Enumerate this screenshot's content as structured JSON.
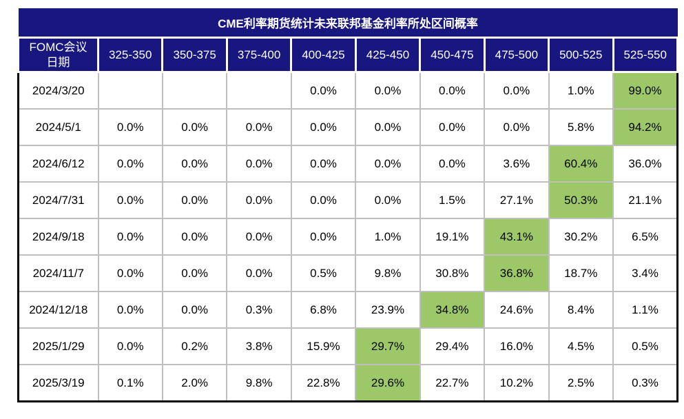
{
  "colors": {
    "header_navy": "#17177F",
    "highlight_green": "#9CC867",
    "grid_gray": "#BFBFBF",
    "outer_border_black": "#000000"
  },
  "chart_data": {
    "type": "table",
    "title": "CME利率期货统计未来联邦基金利率所处区间概率",
    "corner_header_line1": "FOMC会议",
    "corner_header_line2": "日期",
    "columns": [
      "325-350",
      "350-375",
      "375-400",
      "400-425",
      "425-450",
      "450-475",
      "475-500",
      "500-525",
      "525-550"
    ],
    "rows": [
      {
        "date": "2024/3/20",
        "values": [
          "",
          "",
          "",
          "0.0%",
          "0.0%",
          "0.0%",
          "0.0%",
          "1.0%",
          "99.0%"
        ],
        "highlight_col": 8
      },
      {
        "date": "2024/5/1",
        "values": [
          "0.0%",
          "0.0%",
          "0.0%",
          "0.0%",
          "0.0%",
          "0.0%",
          "0.0%",
          "5.8%",
          "94.2%"
        ],
        "highlight_col": 8
      },
      {
        "date": "2024/6/12",
        "values": [
          "0.0%",
          "0.0%",
          "0.0%",
          "0.0%",
          "0.0%",
          "0.0%",
          "3.6%",
          "60.4%",
          "36.0%"
        ],
        "highlight_col": 7
      },
      {
        "date": "2024/7/31",
        "values": [
          "0.0%",
          "0.0%",
          "0.0%",
          "0.0%",
          "0.0%",
          "1.5%",
          "27.1%",
          "50.3%",
          "21.1%"
        ],
        "highlight_col": 7
      },
      {
        "date": "2024/9/18",
        "values": [
          "0.0%",
          "0.0%",
          "0.0%",
          "0.0%",
          "1.0%",
          "19.1%",
          "43.1%",
          "30.2%",
          "6.5%"
        ],
        "highlight_col": 6
      },
      {
        "date": "2024/11/7",
        "values": [
          "0.0%",
          "0.0%",
          "0.0%",
          "0.5%",
          "9.8%",
          "30.8%",
          "36.8%",
          "18.7%",
          "3.4%"
        ],
        "highlight_col": 6
      },
      {
        "date": "2024/12/18",
        "values": [
          "0.0%",
          "0.0%",
          "0.3%",
          "6.8%",
          "23.9%",
          "34.8%",
          "24.6%",
          "8.4%",
          "1.1%"
        ],
        "highlight_col": 5
      },
      {
        "date": "2025/1/29",
        "values": [
          "0.0%",
          "0.2%",
          "3.8%",
          "15.9%",
          "29.7%",
          "29.4%",
          "16.0%",
          "4.5%",
          "0.5%"
        ],
        "highlight_col": 4
      },
      {
        "date": "2025/3/19",
        "values": [
          "0.1%",
          "2.0%",
          "9.8%",
          "22.8%",
          "29.6%",
          "22.7%",
          "10.2%",
          "2.5%",
          "0.3%"
        ],
        "highlight_col": 4
      }
    ]
  }
}
